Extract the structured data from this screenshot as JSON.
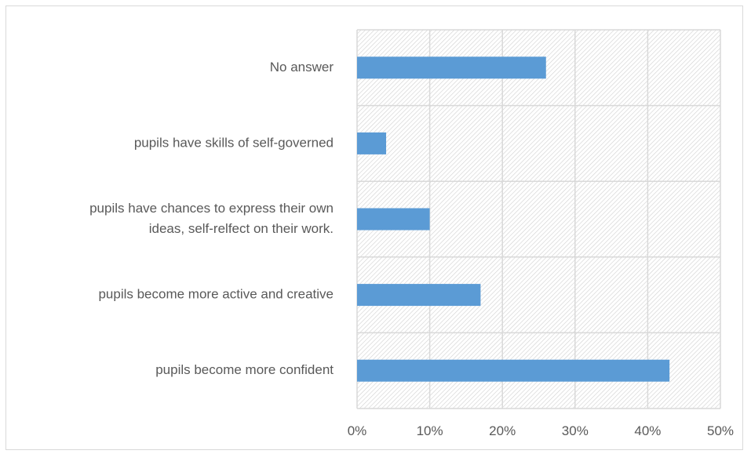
{
  "chart_data": {
    "type": "bar",
    "orientation": "horizontal",
    "categories": [
      [
        "No answer"
      ],
      [
        "pupils have skills of self-governed"
      ],
      [
        "pupils have chances to express their own",
        "ideas, self-relfect on their work."
      ],
      [
        "pupils become more active and creative"
      ],
      [
        "pupils become more confident"
      ]
    ],
    "values": [
      0.26,
      0.04,
      0.1,
      0.17,
      0.43
    ],
    "xlim": [
      0,
      0.5
    ],
    "xticks": [
      0,
      0.1,
      0.2,
      0.3,
      0.4,
      0.5
    ],
    "xtick_labels": [
      "0%",
      "10%",
      "20%",
      "30%",
      "40%",
      "50%"
    ],
    "grid": true,
    "plot_background": "diagonal-hatch",
    "colors": {
      "bar": "#5b9bd5",
      "grid": "#d9d9d9",
      "hatch": "#d0d0d0",
      "text": "#595959"
    }
  }
}
